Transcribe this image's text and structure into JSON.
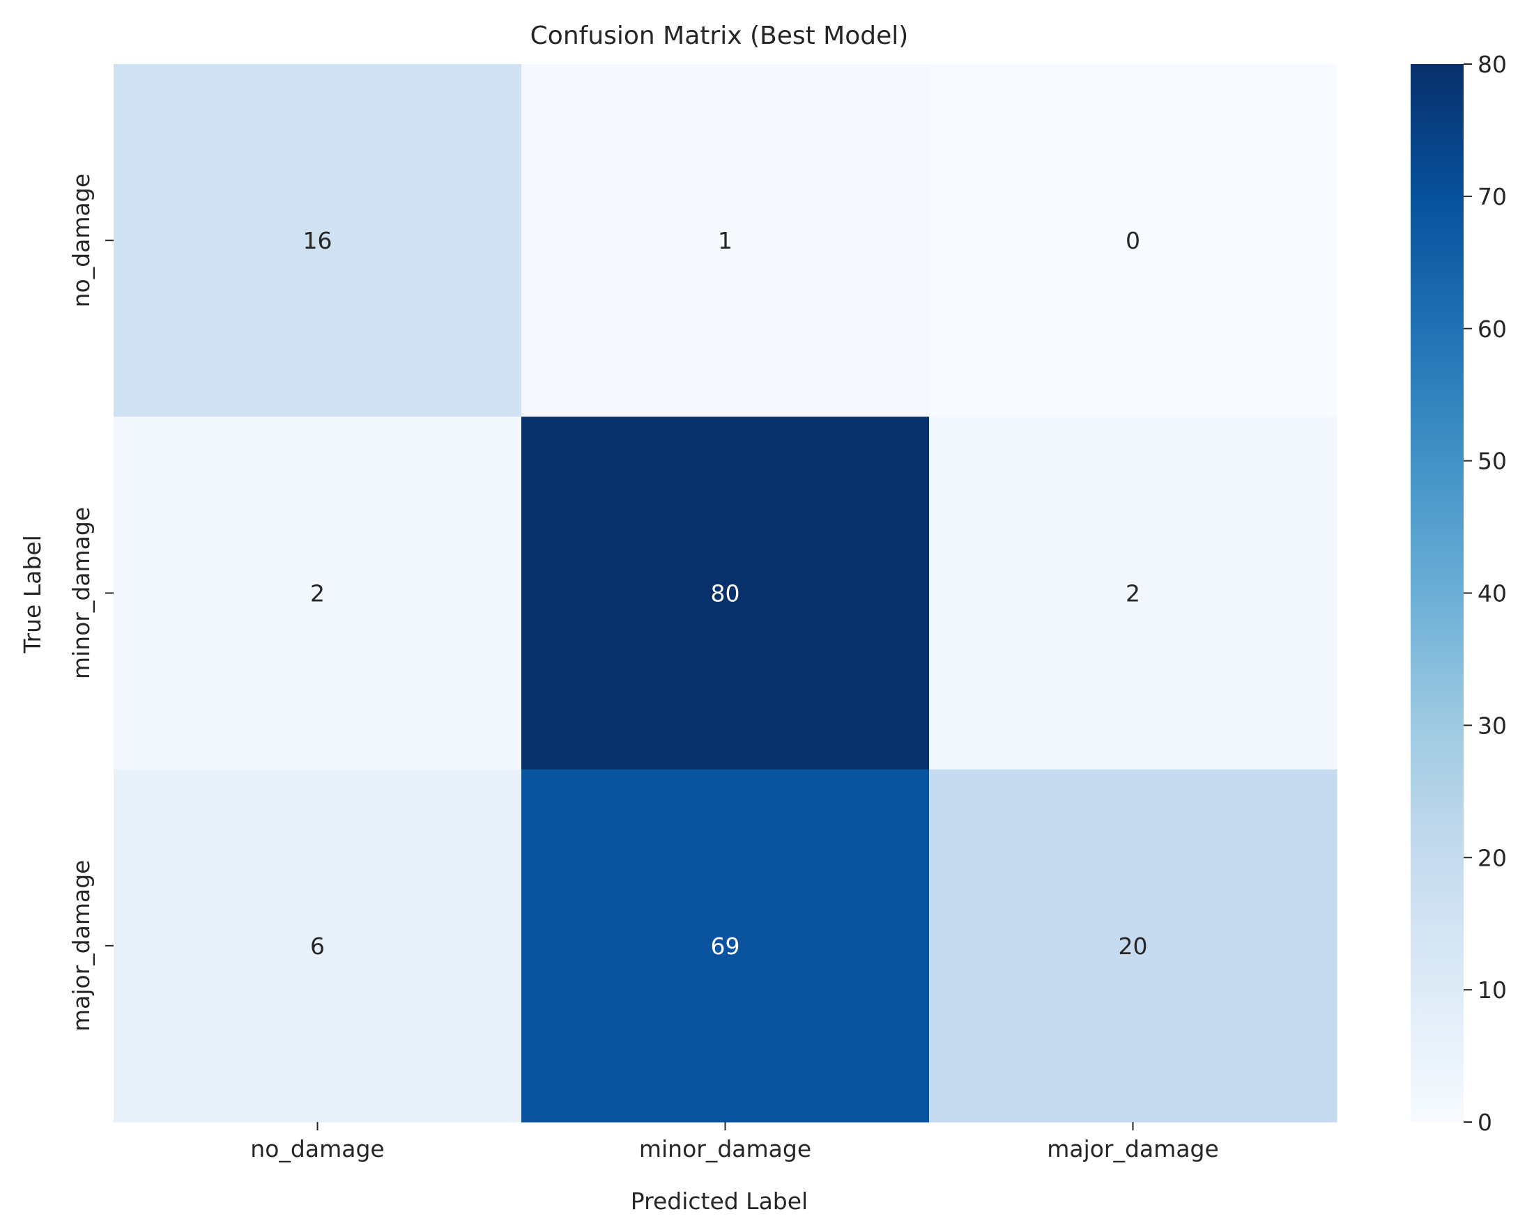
{
  "chart_data": {
    "type": "heatmap",
    "title": "Confusion Matrix (Best Model)",
    "xlabel": "Predicted Label",
    "ylabel": "True Label",
    "x_categories": [
      "no_damage",
      "minor_damage",
      "major_damage"
    ],
    "y_categories": [
      "no_damage",
      "minor_damage",
      "major_damage"
    ],
    "matrix": [
      [
        16,
        1,
        0
      ],
      [
        2,
        80,
        2
      ],
      [
        6,
        69,
        20
      ]
    ],
    "colormap": "Blues",
    "colorbar": {
      "range": [
        0,
        80
      ],
      "ticks": [
        0,
        10,
        20,
        30,
        40,
        50,
        60,
        70,
        80
      ]
    },
    "annotations": true
  }
}
